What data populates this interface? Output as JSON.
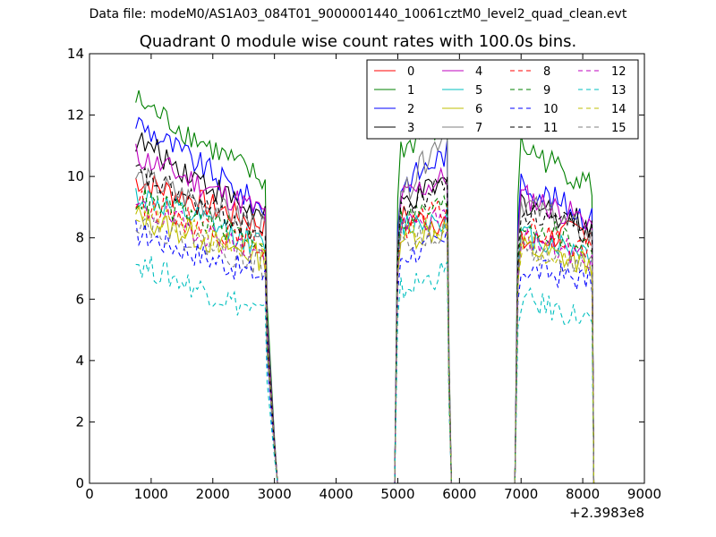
{
  "figure": {
    "suptitle": "Data file: modeM0/AS1A03_084T01_9000001440_10061cztM0_level2_quad_clean.evt"
  },
  "chart_data": {
    "type": "line",
    "title": "Quadrant 0 module wise count rates with 100.0s bins.",
    "xlabel": "",
    "ylabel": "",
    "x_offset_label": "+2.3983e8",
    "xlim": [
      0,
      9000
    ],
    "ylim": [
      0,
      14
    ],
    "x_ticks": [
      0,
      1000,
      2000,
      3000,
      4000,
      5000,
      6000,
      7000,
      8000,
      9000
    ],
    "y_ticks": [
      0,
      2,
      4,
      6,
      8,
      10,
      12,
      14
    ],
    "grid": false,
    "legend_position": "top-right",
    "legend_columns": 4,
    "segments": [
      {
        "x_start": 750,
        "x_end": 2850,
        "step": 50,
        "edge": [
          2880,
          2920,
          2960,
          3000,
          3050
        ]
      },
      {
        "x_start": 5050,
        "x_end": 5800,
        "step": 50,
        "rise": [
          4950,
          5000
        ],
        "edge": [
          5830,
          5870
        ]
      },
      {
        "x_start": 7000,
        "x_end": 8150,
        "step": 50,
        "rise": [
          6900,
          6950
        ],
        "edge": [
          8180
        ]
      }
    ],
    "gap_points": [
      3100,
      4900,
      5900,
      6850
    ],
    "series": [
      {
        "name": "0",
        "color": "#ff0000",
        "dash": false,
        "levels": [
          9.9,
          8.4,
          8.7,
          8.5,
          7.8,
          8.3
        ]
      },
      {
        "name": "1",
        "color": "#008000",
        "dash": false,
        "levels": [
          12.5,
          9.8,
          10.9,
          11.7,
          11.0,
          9.7
        ]
      },
      {
        "name": "2",
        "color": "#0000ff",
        "dash": false,
        "levels": [
          11.8,
          8.9,
          9.7,
          10.8,
          9.8,
          8.6
        ]
      },
      {
        "name": "3",
        "color": "#000000",
        "dash": false,
        "levels": [
          11.2,
          8.6,
          9.1,
          9.8,
          9.2,
          8.4
        ]
      },
      {
        "name": "4",
        "color": "#bf00bf",
        "dash": false,
        "levels": [
          10.7,
          8.8,
          9.3,
          10.0,
          9.4,
          8.5
        ]
      },
      {
        "name": "5",
        "color": "#00bfbf",
        "dash": false,
        "levels": [
          9.4,
          7.7,
          8.4,
          8.7,
          8.1,
          7.5
        ]
      },
      {
        "name": "6",
        "color": "#bfbf00",
        "dash": false,
        "levels": [
          8.7,
          7.3,
          8.0,
          8.3,
          7.7,
          7.1
        ]
      },
      {
        "name": "7",
        "color": "#808080",
        "dash": false,
        "levels": [
          10.0,
          8.3,
          9.2,
          11.7,
          9.2,
          8.0
        ]
      },
      {
        "name": "8",
        "color": "#ff0000",
        "dash": true,
        "levels": [
          9.2,
          7.7,
          8.3,
          8.9,
          8.3,
          7.6
        ]
      },
      {
        "name": "9",
        "color": "#008000",
        "dash": true,
        "levels": [
          9.3,
          7.9,
          8.6,
          9.1,
          8.5,
          7.7
        ]
      },
      {
        "name": "10",
        "color": "#0000ff",
        "dash": true,
        "levels": [
          8.2,
          6.7,
          7.4,
          7.9,
          7.0,
          6.6
        ]
      },
      {
        "name": "11",
        "color": "#000000",
        "dash": true,
        "levels": [
          10.1,
          8.1,
          8.8,
          9.9,
          8.9,
          8.1
        ]
      },
      {
        "name": "12",
        "color": "#bf00bf",
        "dash": true,
        "levels": [
          9.0,
          7.4,
          8.3,
          8.6,
          8.0,
          7.3
        ]
      },
      {
        "name": "13",
        "color": "#00bfbf",
        "dash": true,
        "levels": [
          7.2,
          5.5,
          6.3,
          6.9,
          6.0,
          5.3
        ]
      },
      {
        "name": "14",
        "color": "#bfbf00",
        "dash": true,
        "levels": [
          8.8,
          7.4,
          8.1,
          8.5,
          7.8,
          7.2
        ]
      },
      {
        "name": "15",
        "color": "#808080",
        "dash": true,
        "levels": [
          8.6,
          7.1,
          7.8,
          8.3,
          7.6,
          7.0
        ]
      }
    ]
  }
}
